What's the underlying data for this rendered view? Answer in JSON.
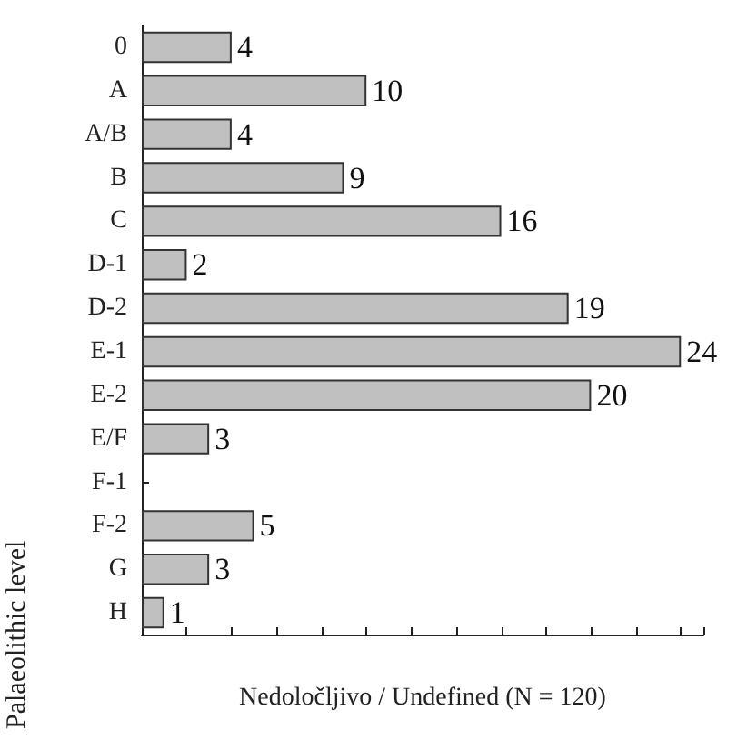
{
  "chart_data": {
    "type": "bar",
    "orientation": "horizontal",
    "categories": [
      "0",
      "A",
      "A/B",
      "B",
      "C",
      "D-1",
      "D-2",
      "E-1",
      "E-2",
      "E/F",
      "F-1",
      "F-2",
      "G",
      "H"
    ],
    "values": [
      4,
      10,
      4,
      9,
      16,
      2,
      19,
      24,
      20,
      3,
      null,
      5,
      3,
      1
    ],
    "color": "#c0c0c0",
    "data_labels": true,
    "xlabel": "Nedoločljivo / Undefined (N = 120)",
    "ylabel": "Palaeolithic level",
    "xlim": [
      0,
      25
    ],
    "tick_labels": "y",
    "grid": false
  }
}
